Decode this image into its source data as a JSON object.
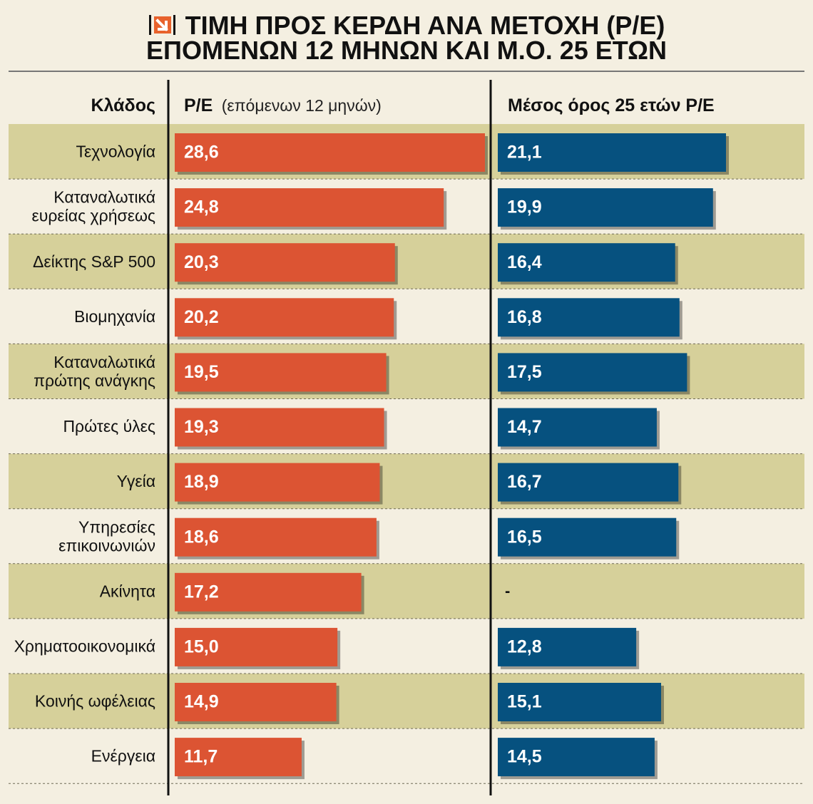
{
  "title_line1": "ΤΙΜΗ ΠΡΟΣ ΚΕΡΔΗ ΑΝΑ ΜΕΤΟΧΗ (P/E)",
  "title_line2": "ΕΠΟΜΕΝΩΝ 12 ΜΗΝΩΝ ΚΑΙ Μ.Ο. 25 ΕΤΩΝ",
  "headers": {
    "category": "Κλάδος",
    "pe_bold": "P/E",
    "pe_light": "(επόμενων 12 μηνών)",
    "avg": "Μέσος όρος 25 ετών P/E"
  },
  "colors": {
    "pe_bar": "#dc5433",
    "avg_bar": "#06517f",
    "band": "#d6d09a",
    "background": "#f4efe1",
    "logo": "#e8622c"
  },
  "chart_data": {
    "type": "bar",
    "orientation": "horizontal",
    "categories": [
      [
        "Τεχνολογία"
      ],
      [
        "Καταναλωτικά",
        "ευρείας χρήσεως"
      ],
      [
        "Δείκτης S&P 500"
      ],
      [
        "Βιομηχανία"
      ],
      [
        "Καταναλωτικά",
        "πρώτης ανάγκης"
      ],
      [
        "Πρώτες ύλες"
      ],
      [
        "Υγεία"
      ],
      [
        "Υπηρεσίες",
        "επικοινωνιών"
      ],
      [
        "Ακίνητα"
      ],
      [
        "Χρηματοοικονομικά"
      ],
      [
        "Κοινής ωφέλειας"
      ],
      [
        "Ενέργεια"
      ]
    ],
    "series": [
      {
        "name": "P/E (επόμενων 12 μηνών)",
        "values": [
          28.6,
          24.8,
          20.3,
          20.2,
          19.5,
          19.3,
          18.9,
          18.6,
          17.2,
          15.0,
          14.9,
          11.7
        ],
        "labels": [
          "28,6",
          "24,8",
          "20,3",
          "20,2",
          "19,5",
          "19,3",
          "18,9",
          "18,6",
          "17,2",
          "15,0",
          "14,9",
          "11,7"
        ]
      },
      {
        "name": "Μέσος όρος 25 ετών P/E",
        "values": [
          21.1,
          19.9,
          16.4,
          16.8,
          17.5,
          14.7,
          16.7,
          16.5,
          null,
          12.8,
          15.1,
          14.5
        ],
        "labels": [
          "21,1",
          "19,9",
          "16,4",
          "16,8",
          "17,5",
          "14,7",
          "16,7",
          "16,5",
          "-",
          "12,8",
          "15,1",
          "14,5"
        ]
      }
    ]
  }
}
